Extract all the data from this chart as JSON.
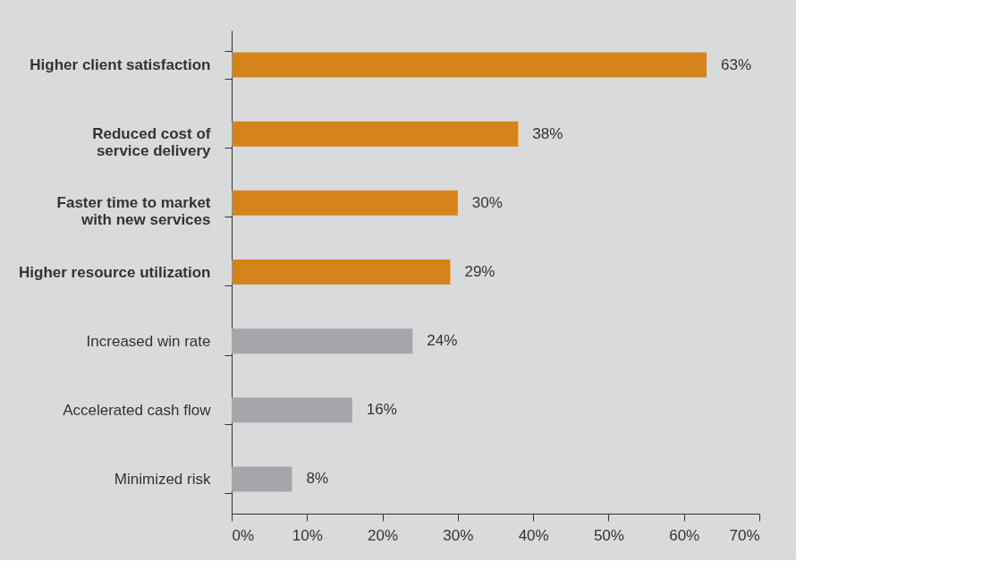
{
  "chart_data": {
    "type": "bar",
    "orientation": "horizontal",
    "categories": [
      "Higher client satisfaction",
      "Reduced cost of\nservice delivery",
      "Faster time to market\nwith new services",
      "Higher resource utilization",
      "Increased win rate",
      "Accelerated cash flow",
      "Minimized risk"
    ],
    "values": [
      63,
      38,
      30,
      29,
      24,
      16,
      8
    ],
    "colors": [
      "#d4841a",
      "#d4841a",
      "#d4841a",
      "#d4841a",
      "#a5a6a9",
      "#a5a6a9",
      "#a5a6a9"
    ],
    "value_labels": [
      "63%",
      "38%",
      "30%",
      "29%",
      "24%",
      "16%",
      "8%"
    ],
    "xlim": [
      0,
      70
    ],
    "xticks": [
      {
        "value": 0,
        "label": "0%"
      },
      {
        "value": 10,
        "label": "10%"
      },
      {
        "value": 20,
        "label": "20%"
      },
      {
        "value": 30,
        "label": "30%"
      },
      {
        "value": 40,
        "label": "40%"
      },
      {
        "value": 50,
        "label": "50%"
      },
      {
        "value": 60,
        "label": "60%"
      },
      {
        "value": 70,
        "label": "70%"
      }
    ]
  }
}
